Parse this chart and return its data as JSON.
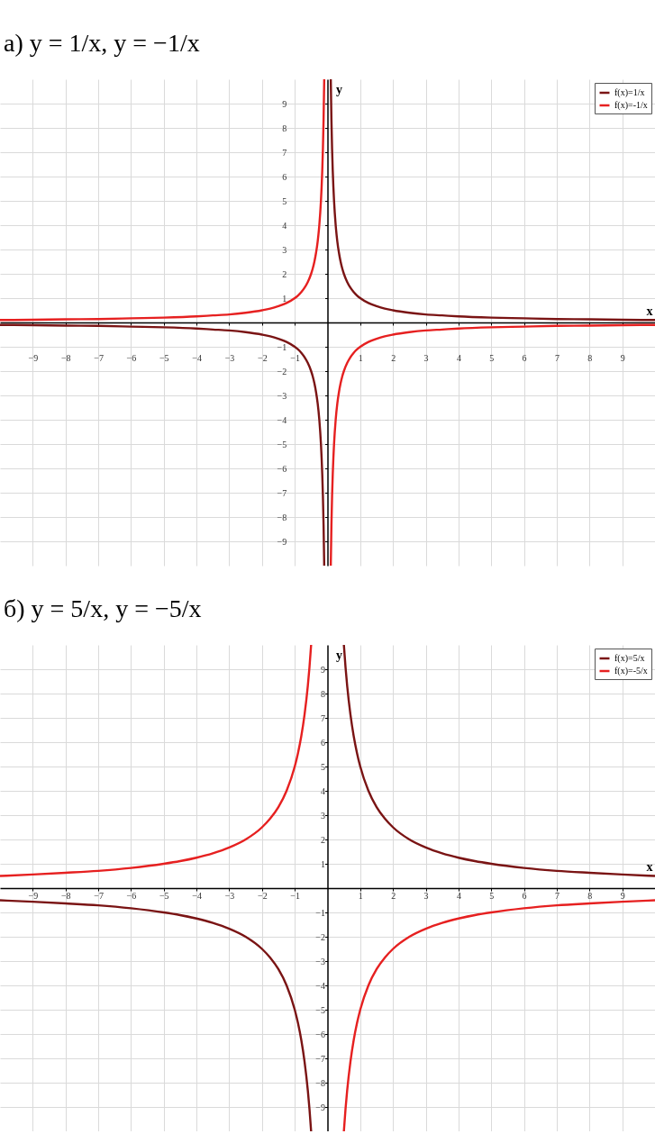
{
  "chart_data": [
    {
      "type": "line",
      "title": "а) y = 1/x,      y = −1/x",
      "xlabel": "x",
      "ylabel": "y",
      "xlim": [
        -10,
        10
      ],
      "ylim": [
        -10,
        10
      ],
      "xticks": [
        -9,
        -8,
        -7,
        -6,
        -5,
        -4,
        -3,
        -2,
        -1,
        1,
        2,
        3,
        4,
        5,
        6,
        7,
        8,
        9
      ],
      "yticks": [
        -9,
        -8,
        -7,
        -6,
        -5,
        -4,
        -3,
        -2,
        -1,
        1,
        2,
        3,
        4,
        5,
        6,
        7,
        8,
        9
      ],
      "grid": true,
      "legend": "top right",
      "x": [
        -10,
        -9,
        -8,
        -7,
        -6,
        -5,
        -4,
        -3.5,
        -3,
        -2.5,
        -2,
        -1.75,
        -1.5,
        -1.25,
        -1,
        -0.9,
        -0.8,
        -0.7,
        -0.6,
        -0.5,
        -0.45,
        -0.4,
        -0.35,
        -0.3,
        -0.25,
        -0.2,
        -0.18,
        -0.16,
        -0.14,
        -0.12,
        -0.1,
        0,
        0.1,
        0.12,
        0.14,
        0.16,
        0.18,
        0.2,
        0.25,
        0.3,
        0.35,
        0.4,
        0.45,
        0.5,
        0.6,
        0.7,
        0.8,
        0.9,
        1,
        1.25,
        1.5,
        1.75,
        2,
        2.5,
        3,
        3.5,
        4,
        5,
        6,
        7,
        8,
        9,
        10
      ],
      "series": [
        {
          "name": "f(x)=1/x",
          "color": "#7a1414",
          "values": [
            -0.1,
            -0.11,
            -0.13,
            -0.14,
            -0.17,
            -0.2,
            -0.25,
            -0.29,
            -0.33,
            -0.4,
            -0.5,
            -0.57,
            -0.67,
            -0.8,
            -1,
            -1.11,
            -1.25,
            -1.43,
            -1.67,
            -2,
            -2.22,
            -2.5,
            -2.86,
            -3.33,
            -4,
            -5,
            -5.56,
            -6.25,
            -7.14,
            -8.33,
            -10,
            null,
            10,
            8.33,
            7.14,
            6.25,
            5.56,
            5,
            4,
            3.33,
            2.86,
            2.5,
            2.22,
            2,
            1.67,
            1.43,
            1.25,
            1.11,
            1,
            0.8,
            0.67,
            0.57,
            0.5,
            0.4,
            0.33,
            0.29,
            0.25,
            0.2,
            0.17,
            0.14,
            0.13,
            0.11,
            0.1
          ]
        },
        {
          "name": "f(x)=-1/x",
          "color": "#e62020",
          "values": [
            0.1,
            0.11,
            0.13,
            0.14,
            0.17,
            0.2,
            0.25,
            0.29,
            0.33,
            0.4,
            0.5,
            0.57,
            0.67,
            0.8,
            1,
            1.11,
            1.25,
            1.43,
            1.67,
            2,
            2.22,
            2.5,
            2.86,
            3.33,
            4,
            5,
            5.56,
            6.25,
            7.14,
            8.33,
            10,
            null,
            -10,
            -8.33,
            -7.14,
            -6.25,
            -5.56,
            -5,
            -4,
            -3.33,
            -2.86,
            -2.5,
            -2.22,
            -2,
            -1.67,
            -1.43,
            -1.25,
            -1.11,
            -1,
            -0.8,
            -0.67,
            -0.57,
            -0.5,
            -0.4,
            -0.33,
            -0.29,
            -0.25,
            -0.2,
            -0.17,
            -0.14,
            -0.13,
            -0.11,
            -0.1
          ]
        }
      ]
    },
    {
      "type": "line",
      "title": "б) y = 5/x,      y = −5/x",
      "xlabel": "x",
      "ylabel": "y",
      "xlim": [
        -10,
        10
      ],
      "ylim": [
        -10,
        10
      ],
      "xticks": [
        -9,
        -8,
        -7,
        -6,
        -5,
        -4,
        -3,
        -2,
        -1,
        1,
        2,
        3,
        4,
        5,
        6,
        7,
        8,
        9
      ],
      "yticks": [
        -9,
        -8,
        -7,
        -6,
        -5,
        -4,
        -3,
        -2,
        -1,
        1,
        2,
        3,
        4,
        5,
        6,
        7,
        8,
        9
      ],
      "grid": true,
      "legend": "top right",
      "x": [
        -10,
        -9,
        -8,
        -7,
        -6,
        -5,
        -4.5,
        -4,
        -3.5,
        -3,
        -2.5,
        -2,
        -1.75,
        -1.5,
        -1.25,
        -1,
        -0.9,
        -0.8,
        -0.7,
        -0.6,
        -0.55,
        -0.5,
        0,
        0.5,
        0.55,
        0.6,
        0.7,
        0.8,
        0.9,
        1,
        1.25,
        1.5,
        1.75,
        2,
        2.5,
        3,
        3.5,
        4,
        4.5,
        5,
        6,
        7,
        8,
        9,
        10
      ],
      "series": [
        {
          "name": "f(x)=5/x",
          "color": "#7a1414",
          "values": [
            -0.5,
            -0.56,
            -0.63,
            -0.71,
            -0.83,
            -1,
            -1.11,
            -1.25,
            -1.43,
            -1.67,
            -2,
            -2.5,
            -2.86,
            -3.33,
            -4,
            -5,
            -5.56,
            -6.25,
            -7.14,
            -8.33,
            -9.09,
            -10,
            null,
            10,
            9.09,
            8.33,
            7.14,
            6.25,
            5.56,
            5,
            4,
            3.33,
            2.86,
            2.5,
            2,
            1.67,
            1.43,
            1.25,
            1.11,
            1,
            0.83,
            0.71,
            0.63,
            0.56,
            0.5
          ]
        },
        {
          "name": "f(x)=-5/x",
          "color": "#e62020",
          "values": [
            0.5,
            0.56,
            0.63,
            0.71,
            0.83,
            1,
            1.11,
            1.25,
            1.43,
            1.67,
            2,
            2.5,
            2.86,
            3.33,
            4,
            5,
            5.56,
            6.25,
            7.14,
            8.33,
            9.09,
            10,
            null,
            -10,
            -9.09,
            -8.33,
            -7.14,
            -6.25,
            -5.56,
            -5,
            -4,
            -3.33,
            -2.86,
            -2.5,
            -2,
            -1.67,
            -1.43,
            -1.25,
            -1.11,
            -1,
            -0.83,
            -0.71,
            -0.63,
            -0.56,
            -0.5
          ]
        }
      ]
    }
  ]
}
